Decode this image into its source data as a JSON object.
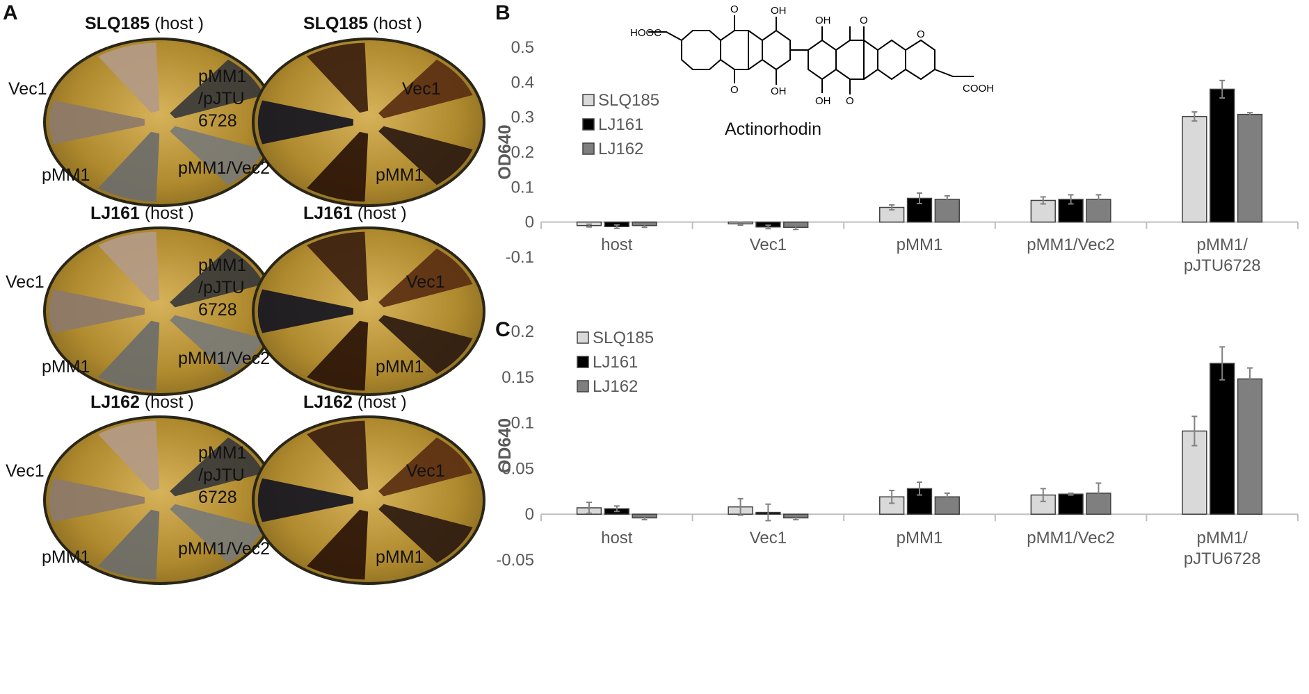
{
  "panel_labels": {
    "a": "A",
    "b": "B",
    "c": "C"
  },
  "panel_a": {
    "host_suffix": "(host )",
    "rows": [
      {
        "strain": "SLQ185"
      },
      {
        "strain": "LJ161"
      },
      {
        "strain": "LJ162"
      }
    ],
    "labels": {
      "vec1": "Vec1",
      "pmm1": "pMM1",
      "pmm1_vec2": "pMM1/Vec2",
      "pmm1_pjtu_left": "pMM1\n/pJTU\n6728",
      "vec1_right": "Vec1",
      "pmm1_right": "pMM1"
    }
  },
  "structure": {
    "name": "Actinorhodin",
    "atoms": {
      "hooc": "HOOC",
      "cooh": "COOH",
      "o": "O",
      "oh": "OH"
    }
  },
  "colors": {
    "SLQ185": "#d9d9d9",
    "LJ161": "#000000",
    "LJ162": "#7f7f7f"
  },
  "chart_data": [
    {
      "type": "bar",
      "panel": "B",
      "categories": [
        "host",
        "Vec1",
        "pMM1",
        "pMM1/Vec2",
        "pMM1/\npJTU6728"
      ],
      "ylabel": "OD640",
      "ylim": [
        -0.1,
        0.5
      ],
      "yticks": [
        -0.1,
        0,
        0.1,
        0.2,
        0.3,
        0.4,
        0.5
      ],
      "ytick_labels": [
        "-0.1",
        "0",
        "0.1",
        "0.2",
        "0.3",
        "0.4",
        "0.5"
      ],
      "legend": "upper-left",
      "series": [
        {
          "name": "SLQ185",
          "values": [
            -0.01,
            -0.005,
            0.042,
            0.062,
            0.302
          ],
          "errors": [
            0.004,
            0.004,
            0.007,
            0.01,
            0.013
          ]
        },
        {
          "name": "LJ161",
          "values": [
            -0.013,
            -0.014,
            0.068,
            0.065,
            0.38
          ],
          "errors": [
            0.005,
            0.005,
            0.015,
            0.013,
            0.025
          ]
        },
        {
          "name": "LJ162",
          "values": [
            -0.01,
            -0.015,
            0.065,
            0.065,
            0.308
          ],
          "errors": [
            0.005,
            0.006,
            0.01,
            0.013,
            0.005
          ]
        }
      ]
    },
    {
      "type": "bar",
      "panel": "C",
      "categories": [
        "host",
        "Vec1",
        "pMM1",
        "pMM1/Vec2",
        "pMM1/\npJTU6728"
      ],
      "ylabel": "OD640",
      "ylim": [
        -0.05,
        0.2
      ],
      "yticks": [
        -0.05,
        0,
        0.05,
        0.1,
        0.15,
        0.2
      ],
      "ytick_labels": [
        "-0.05",
        "0",
        "0.05",
        "0.1",
        "0.15",
        "0.2"
      ],
      "legend": "upper-left",
      "series": [
        {
          "name": "SLQ185",
          "values": [
            0.007,
            0.008,
            0.019,
            0.021,
            0.091
          ],
          "errors": [
            0.006,
            0.009,
            0.007,
            0.007,
            0.016
          ]
        },
        {
          "name": "LJ161",
          "values": [
            0.006,
            0.002,
            0.028,
            0.022,
            0.165
          ],
          "errors": [
            0.003,
            0.009,
            0.007,
            0.001,
            0.018
          ]
        },
        {
          "name": "LJ162",
          "values": [
            -0.004,
            -0.004,
            0.019,
            0.023,
            0.148
          ],
          "errors": [
            0.002,
            0.002,
            0.004,
            0.011,
            0.012
          ]
        }
      ]
    }
  ]
}
